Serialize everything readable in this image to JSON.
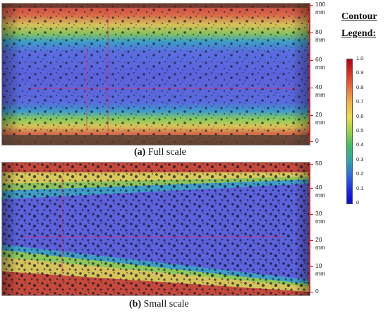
{
  "panel_a": {
    "caption_letter": "(a)",
    "caption_text": " Full scale",
    "scale_ticks": [
      "100",
      "80",
      "60",
      "40",
      "20",
      "0"
    ],
    "unit": "mm"
  },
  "panel_b": {
    "caption_letter": "(b)",
    "caption_text": " Small scale",
    "scale_ticks": [
      "50",
      "40",
      "30",
      "20",
      "10",
      "0"
    ],
    "unit": "mm"
  },
  "legend": {
    "title_line1": "Contour",
    "title_line2": "Legend:",
    "ticks": [
      "1.0",
      "0.9",
      "0.8",
      "0.7",
      "0.6",
      "0.5",
      "0.4",
      "0.3",
      "0.2",
      "0.1",
      "0"
    ],
    "colors": [
      "#b40010",
      "#e03020",
      "#f07030",
      "#f6b040",
      "#eedd44",
      "#9ad440",
      "#3ac060",
      "#2aa8b0",
      "#2a6ee0",
      "#1a2ee8",
      "#0a08d8"
    ]
  }
}
